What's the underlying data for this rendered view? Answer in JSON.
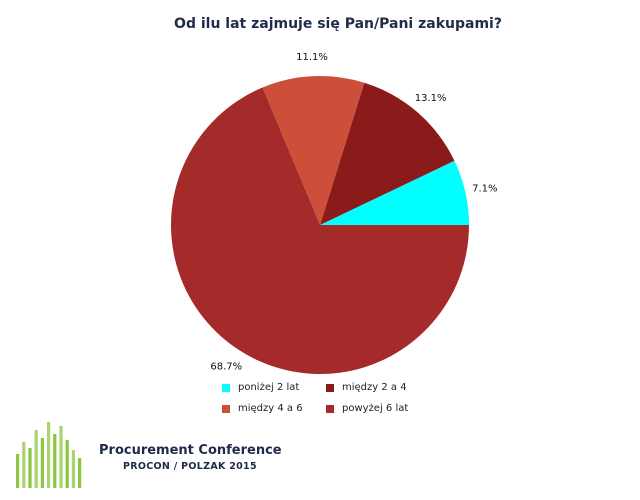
{
  "chart_data": {
    "type": "pie",
    "title": "Od ilu lat zajmuje się Pan/Pani zakupami?",
    "categories": [
      "poniżej 2 lat",
      "między 2 a 4",
      "między 4 a 6",
      "powyżej 6 lat"
    ],
    "values": [
      7.1,
      13.1,
      11.1,
      68.7
    ],
    "value_labels": [
      "7.1%",
      "13.1%",
      "11.1%",
      "68.7%"
    ],
    "colors": [
      "#00ffff",
      "#8b1a1a",
      "#cd4f39",
      "#a52a2a"
    ],
    "legend_position": "bottom"
  },
  "logo": {
    "title": "Procurement Conference",
    "subtitle": "PROCON / POLZAK 2015",
    "color": "#8dc63f"
  }
}
